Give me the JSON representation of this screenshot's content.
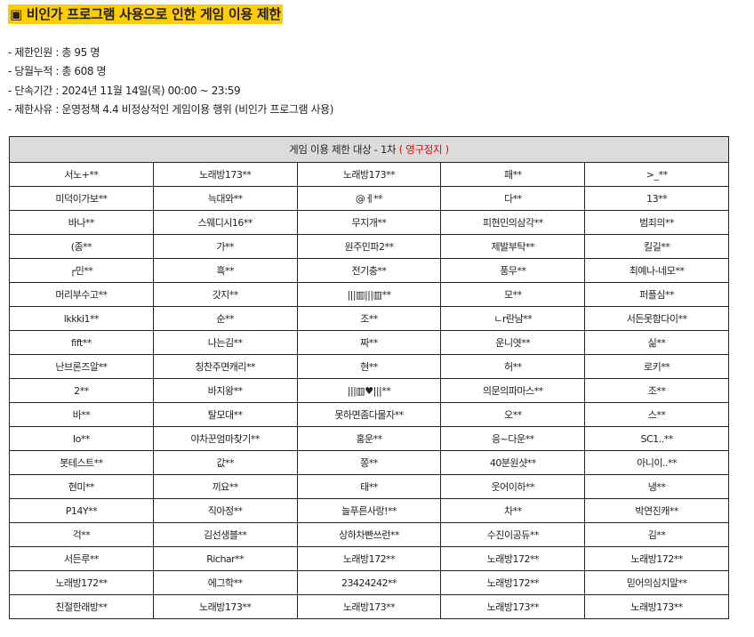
{
  "title": "▣ 비인가 프로그램 사용으로 인한 게임 이용 제한",
  "info": [
    "- 제한인원 : 총 95 명",
    "- 당월누적 : 총 608 명",
    "- 단속기간 : 2024년 11월 14일(목) 00:00 ~ 23:59",
    "- 제한사유 : 운영정책 4.4 비정상적인 게임이용 행위 (비인가 프로그램 사용)"
  ],
  "table": {
    "header": "게임 이용 제한 대상 - 1차",
    "header_status": "( 영구정지 )",
    "status_color": "#ee0000",
    "rows": [
      [
        "서노+**",
        "노래방173**",
        "노래방173**",
        "패**",
        ">_**"
      ],
      [
        "미덕이가보**",
        "늑대와**",
        "@ㅔ**",
        "다**",
        "13**"
      ],
      [
        "바나**",
        "스웨디시16**",
        "무지개**",
        "피현민의삼각**",
        "범죄의**"
      ],
      [
        "(종**",
        "가**",
        "원주민파2**",
        "제발부탁**",
        "킬길**"
      ],
      [
        "┌민**",
        "흑**",
        "전기충**",
        "풍무**",
        "최예나-네모**"
      ],
      [
        "머리부수고**",
        "갓지**",
        "|||▥|||▥**",
        "모**",
        "퍼플심**"
      ],
      [
        "lkkki1**",
        "순**",
        "조**",
        "ㄴr란남**",
        "서든못함다이**"
      ],
      [
        "fift**",
        "나는김**",
        "짜**",
        "운니엿**",
        "싦**"
      ],
      [
        "난브론즈알**",
        "칭찬주면캐리**",
        "현**",
        "허**",
        "로키**"
      ],
      [
        "2**",
        "바지왕**",
        "|||▥♥|||**",
        "의문의파마스**",
        "조**"
      ],
      [
        "바**",
        "탈모대**",
        "못하면좀다물자**",
        "오**",
        "스**"
      ],
      [
        "Io**",
        "야차꾼엄마찾기**",
        "홍운**",
        "응~다운**",
        "SC1..**"
      ],
      [
        "봇테스트**",
        "값**",
        "쫑**",
        "40분원샷**",
        "아니이..**"
      ],
      [
        "현미**",
        "끼요**",
        "태**",
        "웃어이하**",
        "냉**"
      ],
      [
        "P14Y**",
        "직아정**",
        "늘푸른사랑!**",
        "차**",
        "박연진캐**"
      ],
      [
        "걱**",
        "김선생블**",
        "상하차빤쓰런**",
        "수진이공듀**",
        "김**"
      ],
      [
        "서든루**",
        "Richar**",
        "노래방172**",
        "노래방172**",
        "노래방172**"
      ],
      [
        "노래방172**",
        "에그학**",
        "23424242**",
        "노래방172**",
        "믿어의심치말**"
      ],
      [
        "친절한래방**",
        "노래방173**",
        "노래방173**",
        "노래방173**",
        "노래방173**"
      ]
    ]
  }
}
